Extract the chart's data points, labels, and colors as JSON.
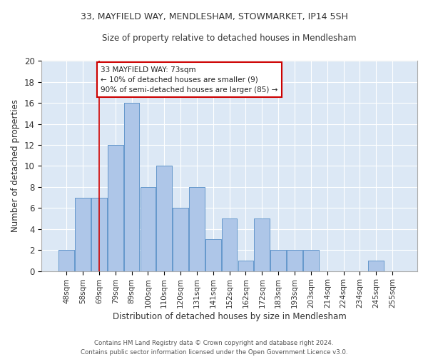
{
  "title_line1": "33, MAYFIELD WAY, MENDLESHAM, STOWMARKET, IP14 5SH",
  "title_line2": "Size of property relative to detached houses in Mendlesham",
  "xlabel": "Distribution of detached houses by size in Mendlesham",
  "ylabel": "Number of detached properties",
  "categories": [
    "48sqm",
    "58sqm",
    "69sqm",
    "79sqm",
    "89sqm",
    "100sqm",
    "110sqm",
    "120sqm",
    "131sqm",
    "141sqm",
    "152sqm",
    "162sqm",
    "172sqm",
    "183sqm",
    "193sqm",
    "203sqm",
    "214sqm",
    "224sqm",
    "234sqm",
    "245sqm",
    "255sqm"
  ],
  "values": [
    2,
    7,
    7,
    12,
    16,
    8,
    10,
    6,
    8,
    3,
    5,
    1,
    5,
    2,
    2,
    2,
    0,
    0,
    0,
    1,
    0
  ],
  "bar_color": "#aec6e8",
  "bar_edge_color": "#6699cc",
  "background_color": "#dce8f5",
  "grid_color": "#ffffff",
  "red_line_x": 2.0,
  "annotation_text": "33 MAYFIELD WAY: 73sqm\n← 10% of detached houses are smaller (9)\n90% of semi-detached houses are larger (85) →",
  "annotation_box_color": "#ffffff",
  "annotation_box_edge": "#cc0000",
  "ylim": [
    0,
    20
  ],
  "yticks": [
    0,
    2,
    4,
    6,
    8,
    10,
    12,
    14,
    16,
    18,
    20
  ],
  "footnote": "Contains HM Land Registry data © Crown copyright and database right 2024.\nContains public sector information licensed under the Open Government Licence v3.0."
}
